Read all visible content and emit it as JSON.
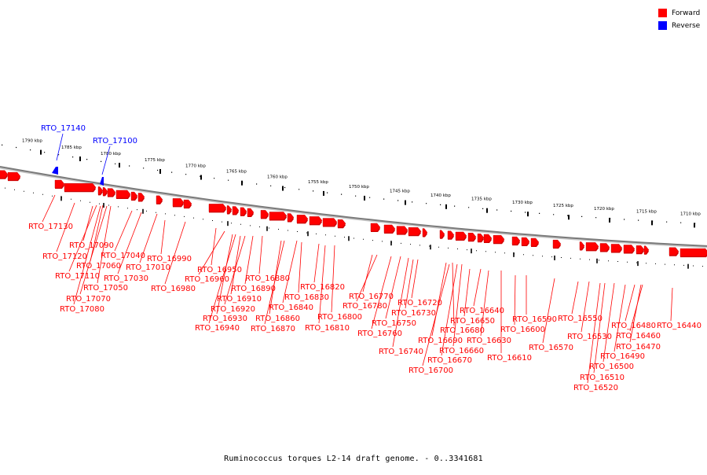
{
  "legend": {
    "items": [
      {
        "label": "Forward",
        "color": "#ff0000"
      },
      {
        "label": "Reverse",
        "color": "#0000ff"
      }
    ]
  },
  "caption": "Ruminococcus torques L2-14 draft genome. - 0..3341681",
  "ticks": [
    "1790 kbp",
    "1785 kbp",
    "1780 kbp",
    "1775 kbp",
    "1770 kbp",
    "1765 kbp",
    "1760 kbp",
    "1755 kbp",
    "1750 kbp",
    "1745 kbp",
    "1740 kbp",
    "1735 kbp",
    "1730 kbp",
    "1725 kbp",
    "1720 kbp",
    "1715 kbp",
    "1710 kbp"
  ],
  "reverse_labels": [
    "RTO_17140",
    "RTO_17100"
  ],
  "forward_labels": [
    "RTO_17130",
    "RTO_17120",
    "RTO_17090",
    "RTO_17060",
    "RTO_17110",
    "RTO_17050",
    "RTO_17070",
    "RTO_17080",
    "RTO_17040",
    "RTO_17030",
    "RTO_17010",
    "RTO_16990",
    "RTO_16980",
    "RTO_16950",
    "RTO_16960",
    "RTO_16890",
    "RTO_16880",
    "RTO_16910",
    "RTO_16920",
    "RTO_16930",
    "RTO_16940",
    "RTO_16840",
    "RTO_16860",
    "RTO_16870",
    "RTO_16830",
    "RTO_16820",
    "RTO_16800",
    "RTO_16810",
    "RTO_16770",
    "RTO_16780",
    "RTO_16720",
    "RTO_16730",
    "RTO_16750",
    "RTO_16760",
    "RTO_16740",
    "RTO_16680",
    "RTO_16690",
    "RTO_16660",
    "RTO_16670",
    "RTO_16700",
    "RTO_16640",
    "RTO_16650",
    "RTO_16630",
    "RTO_16610",
    "RTO_16590",
    "RTO_16600",
    "RTO_16570",
    "RTO_16550",
    "RTO_16530",
    "RTO_16480",
    "RTO_16460",
    "RTO_16470",
    "RTO_16490",
    "RTO_16500",
    "RTO_16510",
    "RTO_16520",
    "RTO_16440"
  ]
}
